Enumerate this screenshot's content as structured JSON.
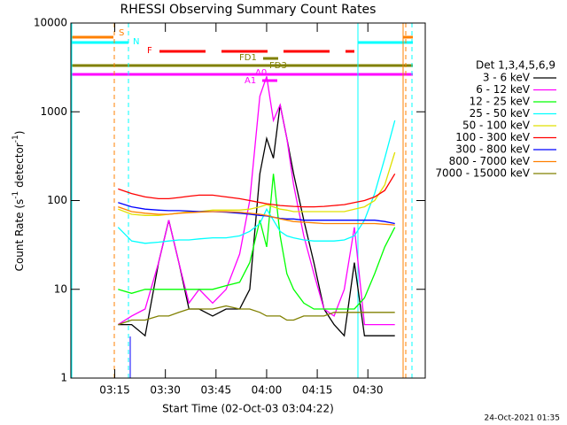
{
  "chart_data": {
    "type": "line",
    "title": "RHESSI Observing Summary Count Rates",
    "x_label": "Start Time (02-Oct-03 03:04:22)",
    "y_label": [
      "Count Rate (s",
      "-1",
      " detector",
      "-1",
      ")"
    ],
    "legend_title": "Det 1,3,4,5,6,9",
    "footer": "24-Oct-2021 01:35",
    "flags": [
      "S",
      "N",
      "F",
      "FD1",
      "FD3",
      "A0",
      "A1"
    ],
    "log_y": true,
    "xlim": [
      "03:02",
      "04:47"
    ],
    "xticks": [
      "03:15",
      "03:30",
      "03:45",
      "04:00",
      "04:15",
      "04:30"
    ],
    "ylim": [
      1,
      10000
    ],
    "yticks": [
      1,
      10,
      100,
      1000,
      10000
    ],
    "x": [
      "03:16",
      "03:20",
      "03:24",
      "03:28",
      "03:31",
      "03:34",
      "03:37",
      "03:40",
      "03:44",
      "03:48",
      "03:52",
      "03:55",
      "03:58",
      "04:00",
      "04:02",
      "04:04",
      "04:06",
      "04:08",
      "04:11",
      "04:14",
      "04:17",
      "04:20",
      "04:23",
      "04:26",
      "04:29",
      "04:32",
      "04:35",
      "04:38"
    ],
    "series": [
      {
        "name": "3 - 6 keV",
        "color": "#000000",
        "values": [
          4,
          4,
          3,
          20,
          60,
          20,
          6,
          6,
          5,
          6,
          6,
          10,
          200,
          500,
          300,
          1200,
          500,
          200,
          60,
          20,
          6,
          4,
          3,
          20,
          3,
          3,
          3,
          3
        ]
      },
      {
        "name": "6 - 12 keV",
        "color": "#ff00ff",
        "values": [
          4,
          5,
          6,
          20,
          60,
          20,
          7,
          10,
          7,
          10,
          25,
          100,
          1500,
          2500,
          800,
          1200,
          500,
          150,
          40,
          15,
          6,
          5,
          10,
          50,
          4,
          4,
          4,
          4
        ]
      },
      {
        "name": "12 - 25 keV",
        "color": "#00ff00",
        "values": [
          10,
          9,
          10,
          10,
          10,
          10,
          10,
          10,
          10,
          11,
          12,
          20,
          60,
          30,
          200,
          40,
          15,
          10,
          7,
          6,
          6,
          6,
          6,
          6,
          8,
          15,
          30,
          50
        ]
      },
      {
        "name": "25 - 50 keV",
        "color": "#00ffff",
        "values": [
          50,
          35,
          33,
          34,
          35,
          36,
          36,
          37,
          38,
          38,
          40,
          45,
          55,
          80,
          60,
          45,
          40,
          38,
          36,
          35,
          35,
          35,
          36,
          40,
          60,
          120,
          300,
          800
        ]
      },
      {
        "name": "50 - 100 keV",
        "color": "#e0e000",
        "values": [
          80,
          70,
          68,
          68,
          70,
          72,
          75,
          75,
          78,
          78,
          78,
          80,
          85,
          90,
          85,
          80,
          78,
          75,
          75,
          75,
          75,
          75,
          75,
          80,
          85,
          100,
          150,
          350
        ]
      },
      {
        "name": "100 - 300 keV",
        "color": "#ff0000",
        "values": [
          135,
          120,
          110,
          105,
          105,
          108,
          112,
          115,
          115,
          110,
          105,
          100,
          95,
          92,
          90,
          88,
          87,
          86,
          85,
          85,
          86,
          88,
          90,
          95,
          100,
          110,
          130,
          200
        ]
      },
      {
        "name": "300 - 800 keV",
        "color": "#0000ff",
        "values": [
          95,
          85,
          80,
          78,
          77,
          77,
          76,
          75,
          75,
          74,
          72,
          70,
          68,
          67,
          65,
          63,
          62,
          62,
          60,
          60,
          60,
          60,
          60,
          60,
          60,
          60,
          58,
          55
        ]
      },
      {
        "name": "800 - 7000 keV",
        "color": "#ff8000",
        "values": [
          85,
          75,
          72,
          70,
          70,
          72,
          73,
          74,
          75,
          75,
          74,
          72,
          70,
          68,
          65,
          62,
          60,
          58,
          57,
          56,
          55,
          55,
          55,
          55,
          55,
          55,
          54,
          53
        ]
      },
      {
        "name": "7000 - 15000 keV",
        "color": "#808000",
        "values": [
          4,
          4.5,
          4.5,
          5,
          5,
          5.5,
          6,
          6,
          6,
          6.5,
          6,
          6,
          5.5,
          5,
          5,
          5,
          4.5,
          4.5,
          5,
          5,
          5,
          5.5,
          5.5,
          5.5,
          5.5,
          5.5,
          5.5,
          5.5
        ]
      }
    ]
  }
}
